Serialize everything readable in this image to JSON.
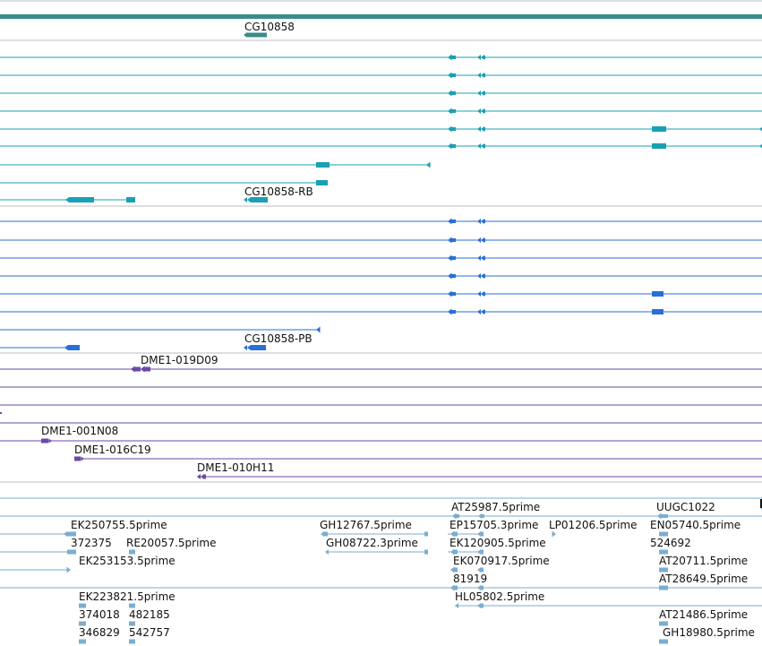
{
  "app": {
    "title": ""
  },
  "colors": {
    "gene_bar": "#3a8c8c",
    "cg_transcript": "#1aa0b4",
    "rb_transcript": "#2a6fd6",
    "dme1_clone": "#6a4aa6",
    "est": "#7aaed0",
    "separator": "#bdbdbd"
  },
  "tracks": {
    "gene": {
      "label": "CG10858"
    },
    "cg_transcripts": {
      "label": "CG10858-RB"
    },
    "rb_transcripts": {
      "label": "CG10858-PB"
    },
    "dme1": {
      "labels": [
        "DME1-019D09",
        "DME1-001N08",
        "DME1-016C19",
        "DME1-010H11"
      ]
    },
    "ests": {
      "labels": [
        "AT25987.5prime",
        "UUGC1022",
        "EK250755.5prime",
        "GH12767.5prime",
        "EP15705.3prime",
        "LP01206.5prime",
        "EN05740.5prime",
        "372375",
        "RE20057.5prime",
        "GH08722.3prime",
        "EK120905.5prime",
        "524692",
        "EK253153.5prime",
        "EK070917.5prime",
        "AT20711.5prime",
        "81919",
        "AT28649.5prime",
        "EK223821.5prime",
        "HL05802.5prime",
        "374018",
        "482185",
        "AT21486.5prime",
        "346829",
        "542757",
        "GH18980.5prime"
      ]
    }
  }
}
